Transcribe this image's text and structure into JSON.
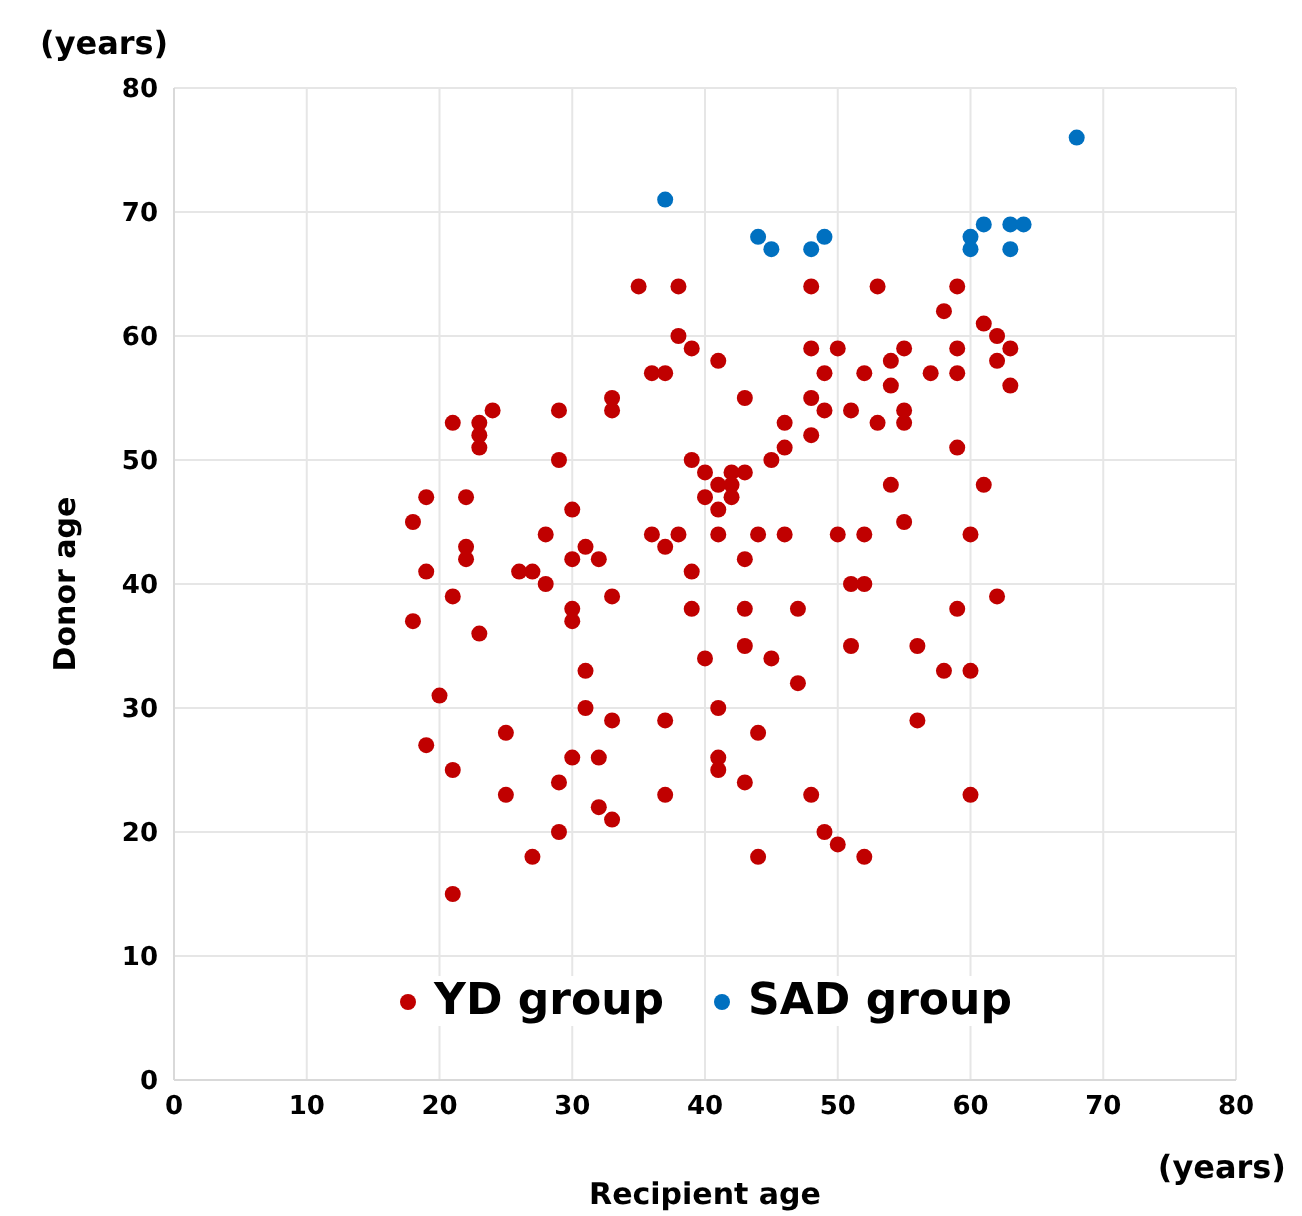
{
  "chart_data": {
    "type": "scatter",
    "xlabel": "Recipient age",
    "ylabel": "Donor age",
    "annotations": [
      "(years)",
      "(years)"
    ],
    "xlim": [
      0,
      80
    ],
    "xticks": [
      0,
      10,
      20,
      30,
      40,
      50,
      60,
      70,
      80
    ],
    "ylim": [
      0,
      80
    ],
    "yticks": [
      0,
      10,
      20,
      30,
      40,
      50,
      60,
      70,
      80
    ],
    "grid": true,
    "legend": "bottom",
    "marker": "circle",
    "series": [
      {
        "name": "YD group",
        "color": "#c00000",
        "x": [
          18,
          18,
          19,
          19,
          19,
          20,
          21,
          21,
          21,
          21,
          22,
          22,
          22,
          23,
          23,
          23,
          23,
          24,
          25,
          25,
          26,
          27,
          27,
          28,
          28,
          29,
          29,
          29,
          29,
          30,
          30,
          30,
          30,
          30,
          31,
          31,
          31,
          32,
          32,
          32,
          33,
          33,
          33,
          33,
          33,
          35,
          36,
          36,
          37,
          37,
          37,
          37,
          38,
          38,
          38,
          39,
          39,
          39,
          39,
          40,
          40,
          40,
          41,
          41,
          41,
          41,
          41,
          41,
          41,
          42,
          42,
          42,
          43,
          43,
          43,
          43,
          43,
          43,
          44,
          44,
          44,
          45,
          45,
          46,
          46,
          46,
          47,
          47,
          48,
          48,
          48,
          48,
          48,
          49,
          49,
          49,
          50,
          50,
          50,
          51,
          51,
          51,
          52,
          52,
          52,
          52,
          53,
          53,
          54,
          54,
          54,
          55,
          55,
          55,
          55,
          56,
          56,
          57,
          58,
          58,
          59,
          59,
          59,
          59,
          59,
          60,
          60,
          60,
          61,
          61,
          62,
          62,
          62,
          63,
          63
        ],
        "values": [
          45,
          37,
          47,
          41,
          27,
          31,
          53,
          39,
          25,
          15,
          47,
          43,
          42,
          53,
          52,
          51,
          36,
          54,
          28,
          23,
          41,
          41,
          18,
          44,
          40,
          54,
          50,
          24,
          20,
          46,
          42,
          38,
          37,
          26,
          43,
          33,
          30,
          42,
          26,
          22,
          55,
          54,
          39,
          29,
          21,
          64,
          57,
          44,
          57,
          43,
          29,
          23,
          64,
          60,
          44,
          59,
          50,
          41,
          38,
          49,
          47,
          34,
          58,
          48,
          46,
          44,
          30,
          26,
          25,
          49,
          48,
          47,
          55,
          49,
          42,
          38,
          35,
          24,
          44,
          28,
          18,
          50,
          34,
          53,
          51,
          44,
          38,
          32,
          64,
          59,
          55,
          52,
          23,
          57,
          54,
          20,
          59,
          44,
          19,
          54,
          40,
          35,
          57,
          44,
          40,
          18,
          64,
          53,
          58,
          56,
          48,
          59,
          54,
          53,
          45,
          35,
          29,
          57,
          62,
          33,
          64,
          59,
          57,
          51,
          38,
          44,
          33,
          23,
          61,
          48,
          60,
          58,
          39,
          59,
          56
        ]
      },
      {
        "name": "SAD group",
        "color": "#0070c0",
        "x": [
          37,
          44,
          45,
          48,
          49,
          60,
          60,
          61,
          63,
          64,
          63,
          68
        ],
        "values": [
          71,
          68,
          67,
          67,
          68,
          68,
          67,
          69,
          69,
          69,
          67,
          76
        ]
      }
    ]
  }
}
